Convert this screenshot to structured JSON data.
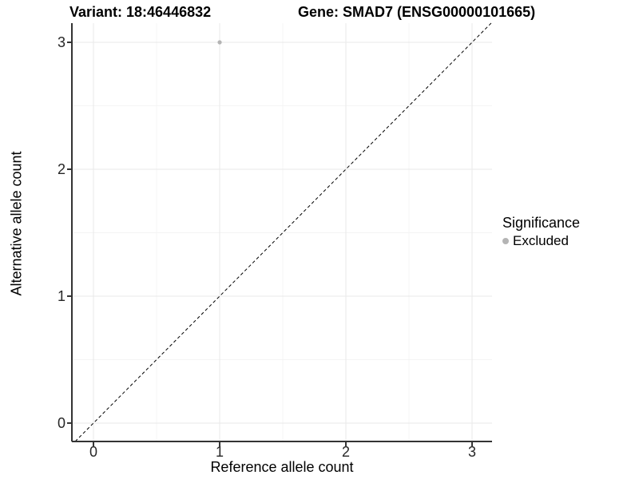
{
  "chart_data": {
    "type": "scatter",
    "title_variant": "Variant: 18:46446832",
    "title_gene": "Gene: SMAD7 (ENSG00000101665)",
    "xlabel": "Reference allele count",
    "ylabel": "Alternative allele count",
    "xticks": [
      0,
      1,
      2,
      3
    ],
    "yticks": [
      0,
      1,
      2,
      3
    ],
    "xticks_minor": [
      0.5,
      1.5,
      2.5
    ],
    "yticks_minor": [
      0.5,
      1.5,
      2.5
    ],
    "xlim": [
      -0.171,
      3.158
    ],
    "ylim": [
      -0.145,
      3.151
    ],
    "grid": {
      "major": true,
      "minor": true
    },
    "points": [
      {
        "x": 1,
        "y": 3,
        "significance": "Excluded"
      }
    ],
    "reference_line": {
      "style": "dashed",
      "slope": 1,
      "intercept": 0
    },
    "legend": {
      "title": "Significance",
      "position": "right",
      "items": [
        {
          "label": "Excluded",
          "color": "#b4b4b4",
          "marker": "circle"
        }
      ]
    },
    "colors": {
      "point": "#b4b4b4",
      "grid_major": "#e9e9e9",
      "grid_minor": "#f4f4f4",
      "axis_line": "#333333",
      "tick_mark": "#333333",
      "dashed_line": "#000000",
      "background": "#ffffff",
      "text": "#000000"
    }
  }
}
